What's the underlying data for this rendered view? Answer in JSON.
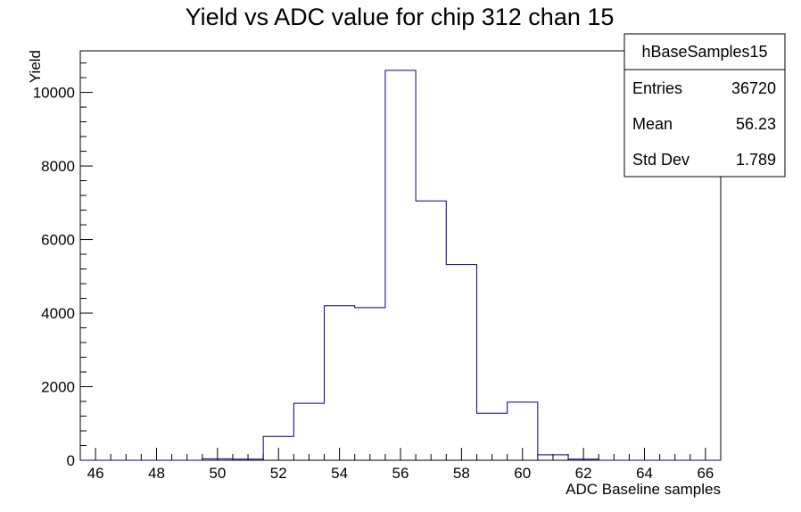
{
  "chart_data": {
    "type": "bar",
    "title": "Yield vs ADC value for chip 312 chan 15",
    "xlabel": "ADC Baseline samples",
    "ylabel": "Yield",
    "xlim": [
      45.5,
      66.5
    ],
    "ylim": [
      0,
      11130
    ],
    "x_ticks": [
      46,
      48,
      50,
      52,
      54,
      56,
      58,
      60,
      62,
      64,
      66
    ],
    "y_ticks": [
      0,
      2000,
      4000,
      6000,
      8000,
      10000
    ],
    "bin_width": 1,
    "bins": [
      {
        "x": 46,
        "value": 0
      },
      {
        "x": 47,
        "value": 0
      },
      {
        "x": 48,
        "value": 0
      },
      {
        "x": 49,
        "value": 0
      },
      {
        "x": 50,
        "value": 40
      },
      {
        "x": 51,
        "value": 30
      },
      {
        "x": 52,
        "value": 650
      },
      {
        "x": 53,
        "value": 1550
      },
      {
        "x": 54,
        "value": 4200
      },
      {
        "x": 55,
        "value": 4150
      },
      {
        "x": 56,
        "value": 10600
      },
      {
        "x": 57,
        "value": 7050
      },
      {
        "x": 58,
        "value": 5320
      },
      {
        "x": 59,
        "value": 1280
      },
      {
        "x": 60,
        "value": 1580
      },
      {
        "x": 61,
        "value": 150
      },
      {
        "x": 62,
        "value": 30
      },
      {
        "x": 63,
        "value": 0
      },
      {
        "x": 64,
        "value": 0
      },
      {
        "x": 65,
        "value": 0
      },
      {
        "x": 66,
        "value": 0
      }
    ],
    "line_color": "#000080",
    "grid": false
  },
  "stats_box": {
    "name": "hBaseSamples15",
    "rows": [
      {
        "label": "Entries",
        "value": "36720"
      },
      {
        "label": "Mean",
        "value": "56.23"
      },
      {
        "label": "Std Dev",
        "value": "1.789"
      }
    ]
  }
}
